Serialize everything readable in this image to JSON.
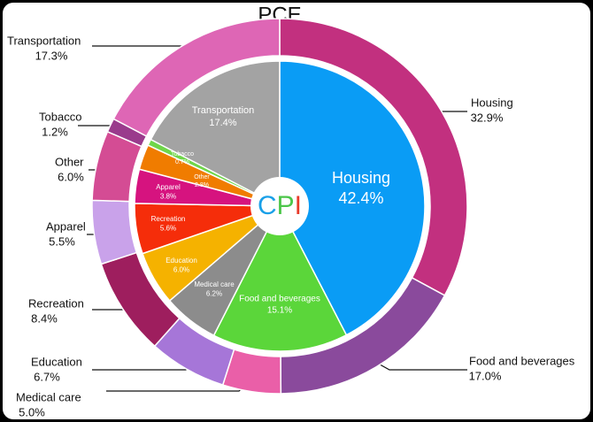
{
  "chart_data": {
    "type": "pie",
    "categories": [
      "Housing",
      "Food and beverages",
      "Medical care",
      "Education",
      "Recreation",
      "Apparel",
      "Other",
      "Tobacco",
      "Transportation"
    ],
    "series": [
      {
        "name": "PCE",
        "color": "#e066a8",
        "values": [
          32.9,
          17.0,
          5.0,
          6.7,
          8.4,
          5.5,
          6.0,
          1.2,
          17.3
        ],
        "value_labels": [
          "32.9%",
          "17.0%",
          "5.0%",
          "6.7%",
          "8.4%",
          "5.5%",
          "6.0%",
          "1.2%",
          "17.3%"
        ],
        "colors": [
          "#c2307f",
          "#8a4a9c",
          "#ea5fa8",
          "#a676d8",
          "#9e1e5e",
          "#c9a2ea",
          "#d44c94",
          "#9a3b8c",
          "#de66b5"
        ]
      },
      {
        "name": "CPI",
        "values": [
          42.4,
          15.1,
          6.2,
          6.0,
          5.6,
          3.8,
          2.8,
          0.7,
          17.4
        ],
        "value_labels": [
          "42.4%",
          "15.1%",
          "6.2%",
          "6.0%",
          "5.6%",
          "3.8%",
          "2.8%",
          "0.7%",
          "17.4%"
        ],
        "colors": [
          "#0a9cf5",
          "#5bd63a",
          "#8c8c8c",
          "#f5b200",
          "#f52d0a",
          "#d6137f",
          "#f07c00",
          "#6fd64a",
          "#a3a3a3"
        ]
      }
    ]
  }
}
